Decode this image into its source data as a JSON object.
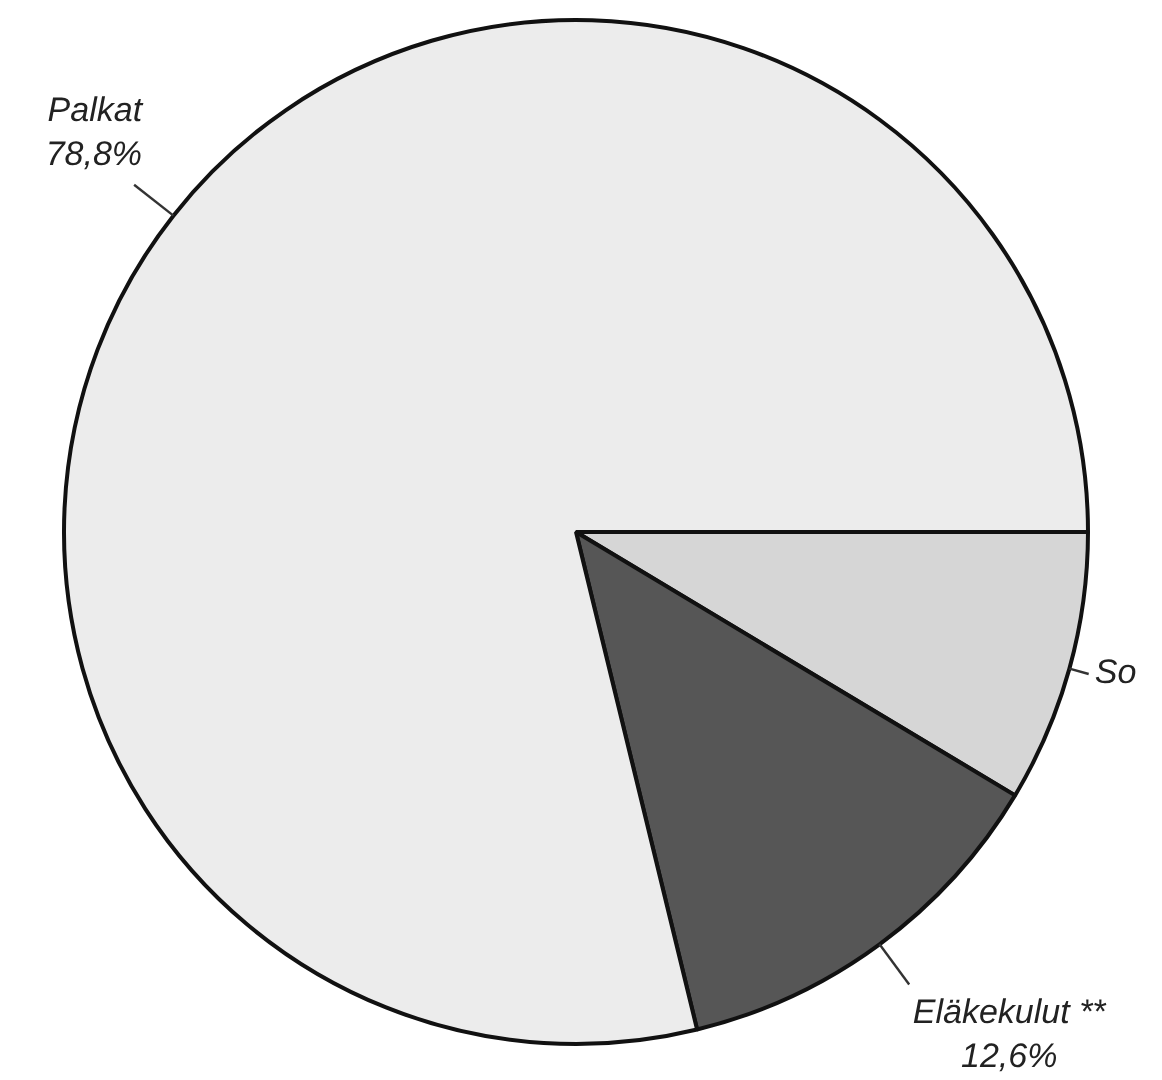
{
  "chart_data": {
    "type": "pie",
    "categories": [
      "So",
      "Eläkekulut **",
      "Palkat"
    ],
    "values": [
      8.6,
      12.6,
      78.8
    ],
    "value_labels": [
      null,
      "12,6%",
      "78,8%"
    ],
    "colors": [
      "#d6d6d6",
      "#565656",
      "#ececec"
    ],
    "legend": false
  }
}
